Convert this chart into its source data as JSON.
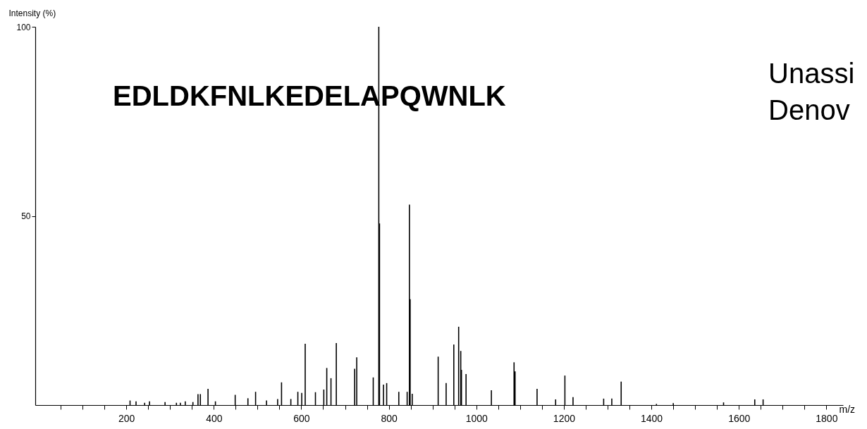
{
  "chart_data": {
    "type": "bar",
    "xlabel": "m/z",
    "ylabel": "Intensity (%)",
    "annotations": [
      "EDLDKFNLKEDELAPQWNLK",
      "Unassi",
      "Denov"
    ],
    "x": [
      208.6,
      222.3,
      242.0,
      253.1,
      288.6,
      314.6,
      323.6,
      334.8,
      352.3,
      363.9,
      369.3,
      386.8,
      403.7,
      448.9,
      478.0,
      495.5,
      520.5,
      545.9,
      554.8,
      576.1,
      592.1,
      601.0,
      608.9,
      632.3,
      651.4,
      658.2,
      667.8,
      680.0,
      721.9,
      726.7,
      764.4,
      777.1,
      778.7,
      787.8,
      795.1,
      822.8,
      841.9,
      847.1,
      848.7,
      853.5,
      912.8,
      931.0,
      948.5,
      959.6,
      964.4,
      966.0,
      976.5,
      1034.4,
      1086.2,
      1088.5,
      1138.8,
      1181.2,
      1202.4,
      1221.0,
      1276.7,
      1291.0,
      1309.6,
      1331.0,
      1411.6,
      1450.1,
      1565.0,
      1636.3,
      1655.4
    ],
    "values": [
      1.2,
      1.0,
      0.6,
      1.0,
      0.8,
      0.6,
      0.6,
      1.0,
      0.8,
      2.9,
      2.9,
      4.3,
      1.0,
      2.7,
      1.8,
      3.5,
      1.2,
      1.6,
      6.0,
      1.6,
      3.5,
      3.2,
      16.2,
      3.4,
      4.1,
      9.8,
      7.1,
      16.4,
      9.6,
      12.6,
      7.3,
      100,
      48,
      5.4,
      5.8,
      3.5,
      3.5,
      53,
      28,
      3.0,
      12.8,
      5.8,
      16.0,
      20.7,
      14.3,
      9.3,
      8.2,
      3.9,
      11.3,
      8.9,
      4.3,
      1.5,
      7.8,
      2.1,
      null,
      1.7,
      1.7,
      6.2,
      0.3,
      0.5,
      0.7,
      1.5,
      1.5
    ],
    "color": "#000000",
    "xlim": [
      0,
      1830
    ],
    "xticks": [
      {
        "value": 50,
        "label": null
      },
      {
        "value": 100,
        "label": null
      },
      {
        "value": 150,
        "label": null
      },
      200,
      {
        "value": 250,
        "label": null
      },
      {
        "value": 300,
        "label": null
      },
      {
        "value": 350,
        "label": null
      },
      400,
      {
        "value": 450,
        "label": null
      },
      {
        "value": 500,
        "label": null
      },
      {
        "value": 550,
        "label": null
      },
      600,
      {
        "value": 650,
        "label": null
      },
      {
        "value": 700,
        "label": null
      },
      {
        "value": 750,
        "label": null
      },
      800,
      {
        "value": 850,
        "label": null
      },
      {
        "value": 900,
        "label": null
      },
      {
        "value": 950,
        "label": null
      },
      1000,
      {
        "value": 1050,
        "label": null
      },
      {
        "value": 1100,
        "label": null
      },
      {
        "value": 1150,
        "label": null
      },
      1200,
      {
        "value": 1250,
        "label": null
      },
      {
        "value": 1300,
        "label": null
      },
      {
        "value": 1350,
        "label": null
      },
      1400,
      {
        "value": 1450,
        "label": null
      },
      {
        "value": 1500,
        "label": null
      },
      {
        "value": 1550,
        "label": null
      },
      1600,
      {
        "value": 1650,
        "label": null
      },
      {
        "value": 1700,
        "label": null
      },
      {
        "value": 1750,
        "label": null
      },
      1800
    ],
    "ylim": [
      0,
      100
    ],
    "yticks": [
      50,
      100
    ],
    "grid": false
  }
}
